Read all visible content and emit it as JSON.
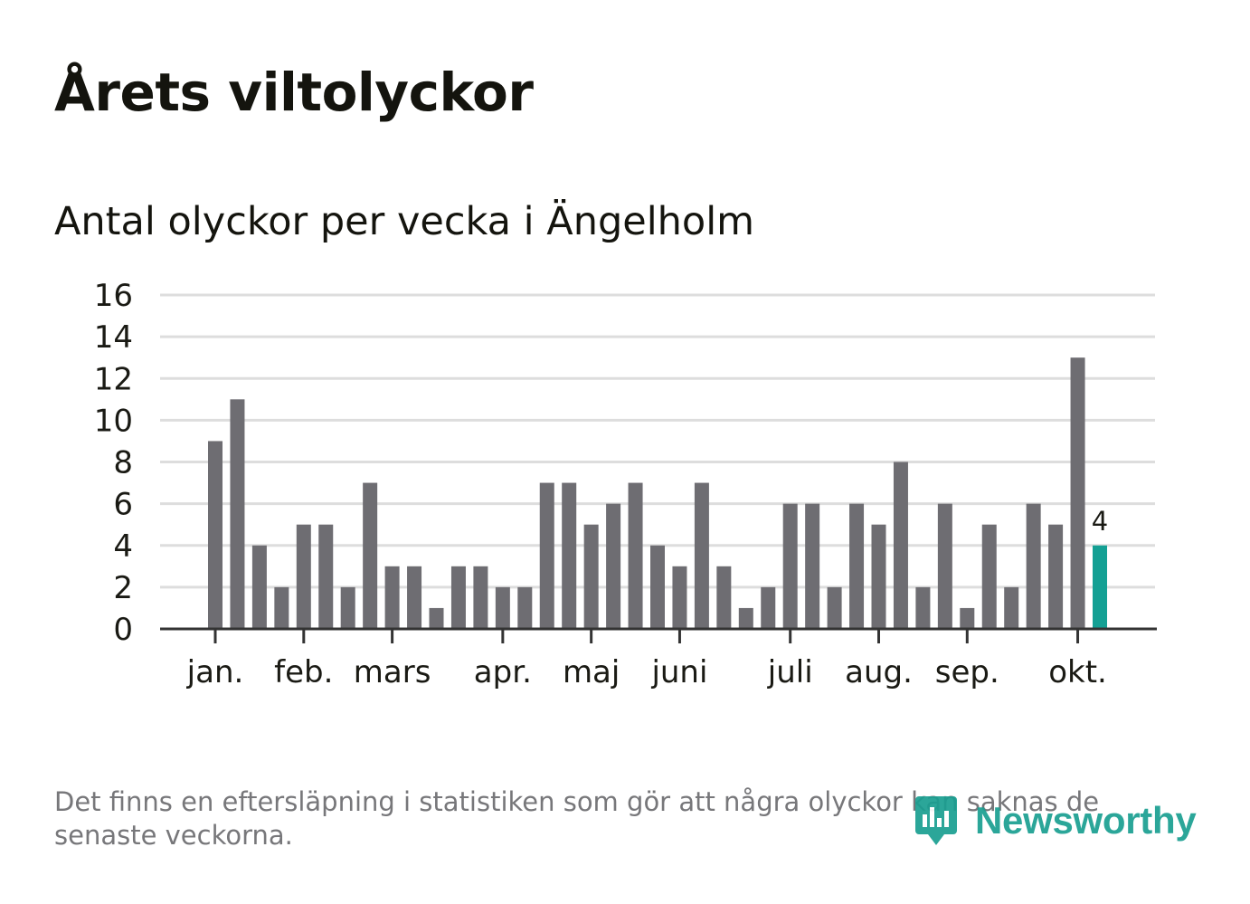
{
  "header": {
    "title": "Årets viltolyckor",
    "subtitle": "Antal olyckor per vecka i Ängelholm"
  },
  "footer": {
    "note": "Det finns en eftersläpning i statistiken som gör att några olyckor kan saknas de senaste veckorna.",
    "logo_text": "Newsworthy",
    "logo_icon": "bar-chart-speech-bubble-icon"
  },
  "colors": {
    "bar": "#6e6d72",
    "highlight": "#14a094",
    "grid": "#dddddd",
    "axis": "#333333",
    "text": "#1a1a14",
    "footnote": "#77777a",
    "brand": "#1a9f91"
  },
  "chart_data": {
    "type": "bar",
    "title": "Antal olyckor per vecka i Ängelholm",
    "xlabel": "",
    "ylabel": "",
    "ylim": [
      0,
      16
    ],
    "yticks": [
      0,
      2,
      4,
      6,
      8,
      10,
      12,
      14,
      16
    ],
    "grid": true,
    "values": [
      9,
      11,
      4,
      2,
      5,
      5,
      2,
      7,
      3,
      3,
      1,
      3,
      3,
      2,
      2,
      7,
      7,
      5,
      6,
      7,
      4,
      3,
      7,
      3,
      1,
      2,
      6,
      6,
      2,
      6,
      5,
      8,
      2,
      6,
      1,
      5,
      2,
      6,
      5,
      13,
      4
    ],
    "highlight_index": 40,
    "highlight_label": "4",
    "month_ticks": [
      {
        "label": "jan.",
        "index": 0
      },
      {
        "label": "feb.",
        "index": 4
      },
      {
        "label": "mars",
        "index": 8
      },
      {
        "label": "apr.",
        "index": 13
      },
      {
        "label": "maj",
        "index": 17
      },
      {
        "label": "juni",
        "index": 21
      },
      {
        "label": "juli",
        "index": 26
      },
      {
        "label": "aug.",
        "index": 30
      },
      {
        "label": "sep.",
        "index": 34
      },
      {
        "label": "okt.",
        "index": 39
      }
    ]
  }
}
